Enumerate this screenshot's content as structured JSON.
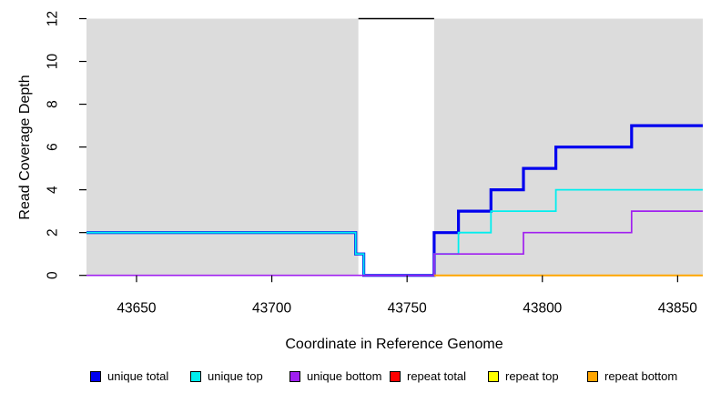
{
  "chart_data": {
    "type": "line",
    "subtype": "step",
    "title": "",
    "xlabel": "Coordinate in Reference Genome",
    "ylabel": "Read Coverage Depth",
    "xlim": [
      43631.5,
      43859.3
    ],
    "ylim": [
      0,
      12
    ],
    "x_ticks": [
      43650,
      43700,
      43750,
      43800,
      43850
    ],
    "y_ticks": [
      0,
      2,
      4,
      6,
      8,
      10,
      12
    ],
    "grid": false,
    "legend_position": "bottom",
    "background_color": "#ffffff",
    "shaded_regions": [
      {
        "name": "repeat-region-left",
        "x0": 43631.5,
        "x1": 43732,
        "color": "#DCDCDC"
      },
      {
        "name": "repeat-region-right",
        "x0": 43760,
        "x1": 43859.3,
        "color": "#DCDCDC"
      }
    ],
    "gap_marker": {
      "x0": 43732,
      "x1": 43760,
      "y": 12,
      "color": "#000000"
    },
    "series": [
      {
        "name": "unique total",
        "color": "#0000EE",
        "width": 3.2,
        "points": [
          [
            43631.5,
            2
          ],
          [
            43731,
            2
          ],
          [
            43731,
            1
          ],
          [
            43734,
            1
          ],
          [
            43734,
            0
          ],
          [
            43760,
            0
          ],
          [
            43760,
            2
          ],
          [
            43769,
            2
          ],
          [
            43769,
            3
          ],
          [
            43781,
            3
          ],
          [
            43781,
            4
          ],
          [
            43793,
            4
          ],
          [
            43793,
            5
          ],
          [
            43805,
            5
          ],
          [
            43805,
            6
          ],
          [
            43833,
            6
          ],
          [
            43833,
            7
          ],
          [
            43859.3,
            7
          ]
        ]
      },
      {
        "name": "unique top",
        "color": "#00EEEE",
        "width": 1.8,
        "points": [
          [
            43631.5,
            2
          ],
          [
            43731,
            2
          ],
          [
            43731,
            1
          ],
          [
            43734,
            1
          ],
          [
            43734,
            0
          ],
          [
            43760,
            0
          ],
          [
            43760,
            1
          ],
          [
            43769,
            1
          ],
          [
            43769,
            2
          ],
          [
            43781,
            2
          ],
          [
            43781,
            3
          ],
          [
            43805,
            3
          ],
          [
            43805,
            4
          ],
          [
            43859.3,
            4
          ]
        ]
      },
      {
        "name": "unique bottom",
        "color": "#A020F0",
        "width": 1.7,
        "points": [
          [
            43631.5,
            0
          ],
          [
            43760,
            0
          ],
          [
            43760,
            1
          ],
          [
            43793,
            1
          ],
          [
            43793,
            2
          ],
          [
            43833,
            2
          ],
          [
            43833,
            3
          ],
          [
            43859.3,
            3
          ]
        ]
      },
      {
        "name": "repeat bottom",
        "color": "#FFA500",
        "width": 2,
        "points": [
          [
            43760,
            0
          ],
          [
            43859.3,
            0
          ]
        ]
      }
    ]
  },
  "legend": {
    "items": [
      {
        "label": "unique total",
        "color": "#0000EE"
      },
      {
        "label": "unique top",
        "color": "#00EEEE"
      },
      {
        "label": "unique bottom",
        "color": "#A020F0"
      },
      {
        "label": "repeat total",
        "color": "#FF0000"
      },
      {
        "label": "repeat top",
        "color": "#FFFF00"
      },
      {
        "label": "repeat bottom",
        "color": "#FFA500"
      }
    ]
  }
}
